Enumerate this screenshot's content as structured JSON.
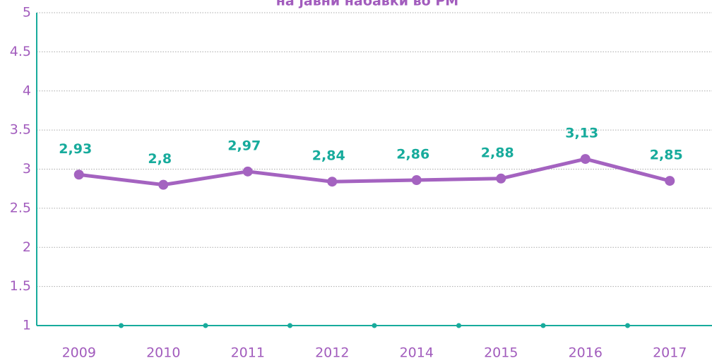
{
  "chart_data": {
    "type": "line",
    "title": "на јавни набавки во РМ",
    "categories": [
      "2009",
      "2010",
      "2011",
      "2012",
      "2014",
      "2015",
      "2016",
      "2017"
    ],
    "series": [
      {
        "name": null,
        "color": "#a463c0",
        "values": [
          2.93,
          2.8,
          2.97,
          2.84,
          2.86,
          2.88,
          3.13,
          2.85
        ],
        "value_labels": [
          "2,93",
          "2,8",
          "2,97",
          "2,84",
          "2,86",
          "2,88",
          "3,13",
          "2,85"
        ]
      }
    ],
    "label_color": "#17ab9c",
    "axis_color": "#17ab9c",
    "ylim": [
      1,
      5
    ],
    "yticks": [
      1,
      1.5,
      2,
      2.5,
      3,
      3.5,
      4,
      4.5,
      5
    ],
    "grid": true
  }
}
